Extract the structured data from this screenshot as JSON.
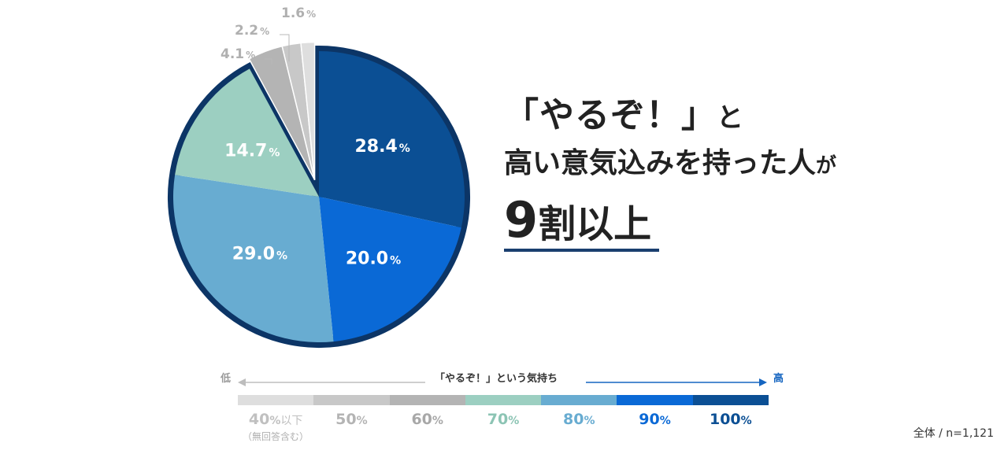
{
  "chart_data": {
    "type": "pie",
    "slices": [
      {
        "label": "100%",
        "value": 28.4,
        "value_label": "28.4",
        "color": "#0b4f94",
        "exploded": false,
        "label_style": "inside"
      },
      {
        "label": "90%",
        "value": 20.0,
        "value_label": "20.0",
        "color": "#0a69d6",
        "exploded": false,
        "label_style": "inside"
      },
      {
        "label": "80%",
        "value": 29.0,
        "value_label": "29.0",
        "color": "#68acd1",
        "exploded": false,
        "label_style": "inside"
      },
      {
        "label": "70%",
        "value": 14.7,
        "value_label": "14.7",
        "color": "#9ccfc1",
        "exploded": false,
        "label_style": "inside"
      },
      {
        "label": "60%",
        "value": 4.1,
        "value_label": "4.1",
        "color": "#b4b4b4",
        "exploded": true,
        "label_style": "callout"
      },
      {
        "label": "50%",
        "value": 2.2,
        "value_label": "2.2",
        "color": "#c8c8c8",
        "exploded": true,
        "label_style": "callout"
      },
      {
        "label": "40%以下",
        "value": 1.6,
        "value_label": "1.6",
        "color": "#dedede",
        "exploded": true,
        "label_style": "callout"
      }
    ],
    "percent_sign": "%",
    "outline_color": "#0c3566"
  },
  "headline": {
    "open_bracket": "「",
    "word": "やるぞ！",
    "close_bracket": "」",
    "particle1": "と",
    "line2_main": "高い意気込みを持った人",
    "line2_particle": "が",
    "line3_number": "9",
    "line3_text": "割以上"
  },
  "scale": {
    "low_label": "低",
    "high_label": "高",
    "title": "「やるぞ！」という気持ち",
    "levels": [
      {
        "value": "40",
        "suffix": "以下",
        "color": "#dedede",
        "text_color": "#c0c0c0"
      },
      {
        "value": "50",
        "suffix": "",
        "color": "#c8c8c8",
        "text_color": "#b4b4b4"
      },
      {
        "value": "60",
        "suffix": "",
        "color": "#b4b4b4",
        "text_color": "#a8a8a8"
      },
      {
        "value": "70",
        "suffix": "",
        "color": "#9ccfc1",
        "text_color": "#8cc4b4"
      },
      {
        "value": "80",
        "suffix": "",
        "color": "#68acd1",
        "text_color": "#68acd1"
      },
      {
        "value": "90",
        "suffix": "",
        "color": "#0a69d6",
        "text_color": "#0a69d6"
      },
      {
        "value": "100",
        "suffix": "",
        "color": "#0b4f94",
        "text_color": "#0b4f94"
      }
    ],
    "note": "（無回答含む）",
    "arrow_low_color": "#bdbdbd",
    "arrow_high_color": "#1565c0"
  },
  "footnote": "全体 / n=1,121"
}
